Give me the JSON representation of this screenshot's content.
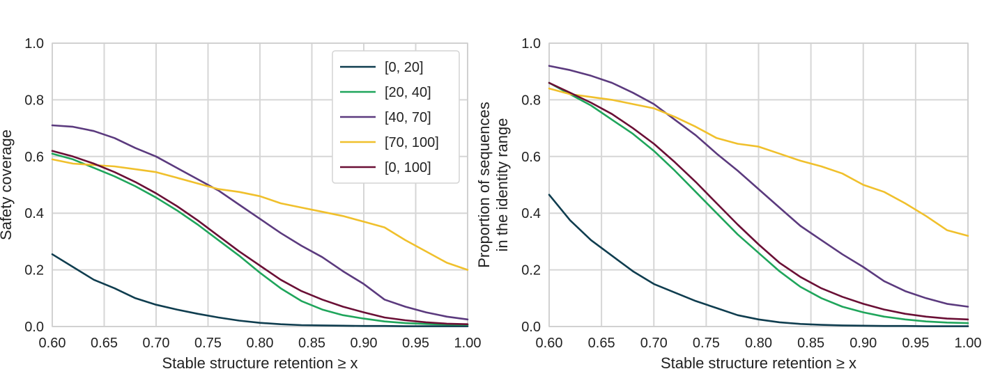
{
  "chart_data": [
    {
      "type": "line",
      "title": "",
      "xlabel": "Stable structure retention ≥ x",
      "ylabel": "Safety coverage",
      "ylabel_lines": [
        "Safety coverage"
      ],
      "xlim": [
        0.6,
        1.0
      ],
      "ylim": [
        0.0,
        1.0
      ],
      "xticks": [
        "0.60",
        "0.65",
        "0.70",
        "0.75",
        "0.80",
        "0.85",
        "0.90",
        "0.95",
        "1.00"
      ],
      "yticks": [
        "0.0",
        "0.2",
        "0.4",
        "0.6",
        "0.8",
        "1.0"
      ],
      "grid": true,
      "legend_position": "top-right",
      "series": [
        {
          "name": "[0, 20]",
          "color": "#0f3d4f",
          "x": [
            0.6,
            0.62,
            0.64,
            0.66,
            0.68,
            0.7,
            0.72,
            0.74,
            0.76,
            0.78,
            0.8,
            0.82,
            0.84,
            0.86,
            0.88,
            0.9,
            0.92,
            0.94,
            0.96,
            0.98,
            1.0
          ],
          "y": [
            0.255,
            0.21,
            0.165,
            0.135,
            0.1,
            0.077,
            0.06,
            0.045,
            0.032,
            0.021,
            0.013,
            0.008,
            0.005,
            0.004,
            0.003,
            0.002,
            0.002,
            0.001,
            0.001,
            0.001,
            0.001
          ]
        },
        {
          "name": "[20, 40]",
          "color": "#1fa55b",
          "x": [
            0.6,
            0.62,
            0.64,
            0.66,
            0.68,
            0.7,
            0.72,
            0.74,
            0.76,
            0.78,
            0.8,
            0.82,
            0.84,
            0.86,
            0.88,
            0.9,
            0.92,
            0.94,
            0.96,
            0.98,
            1.0
          ],
          "y": [
            0.61,
            0.59,
            0.56,
            0.53,
            0.495,
            0.455,
            0.41,
            0.36,
            0.305,
            0.25,
            0.19,
            0.135,
            0.09,
            0.06,
            0.04,
            0.028,
            0.018,
            0.012,
            0.009,
            0.007,
            0.006
          ]
        },
        {
          "name": "[40, 70]",
          "color": "#5b3a7e",
          "x": [
            0.6,
            0.62,
            0.64,
            0.66,
            0.68,
            0.7,
            0.72,
            0.74,
            0.76,
            0.78,
            0.8,
            0.82,
            0.84,
            0.86,
            0.88,
            0.9,
            0.92,
            0.94,
            0.96,
            0.98,
            1.0
          ],
          "y": [
            0.71,
            0.705,
            0.69,
            0.665,
            0.63,
            0.6,
            0.56,
            0.52,
            0.48,
            0.43,
            0.38,
            0.33,
            0.285,
            0.245,
            0.195,
            0.15,
            0.095,
            0.07,
            0.05,
            0.035,
            0.025
          ]
        },
        {
          "name": "[70, 100]",
          "color": "#f0c02c",
          "x": [
            0.6,
            0.62,
            0.64,
            0.66,
            0.68,
            0.7,
            0.72,
            0.74,
            0.76,
            0.78,
            0.8,
            0.82,
            0.84,
            0.86,
            0.88,
            0.9,
            0.92,
            0.94,
            0.96,
            0.98,
            1.0
          ],
          "y": [
            0.59,
            0.575,
            0.57,
            0.565,
            0.555,
            0.545,
            0.525,
            0.505,
            0.485,
            0.475,
            0.46,
            0.435,
            0.42,
            0.405,
            0.39,
            0.37,
            0.35,
            0.305,
            0.265,
            0.225,
            0.2
          ]
        },
        {
          "name": "[0, 100]",
          "color": "#6a0f35",
          "x": [
            0.6,
            0.62,
            0.64,
            0.66,
            0.68,
            0.7,
            0.72,
            0.74,
            0.76,
            0.78,
            0.8,
            0.82,
            0.84,
            0.86,
            0.88,
            0.9,
            0.92,
            0.94,
            0.96,
            0.98,
            1.0
          ],
          "y": [
            0.62,
            0.6,
            0.575,
            0.545,
            0.51,
            0.47,
            0.425,
            0.375,
            0.32,
            0.265,
            0.215,
            0.165,
            0.125,
            0.095,
            0.07,
            0.05,
            0.032,
            0.022,
            0.015,
            0.01,
            0.008
          ]
        }
      ]
    },
    {
      "type": "line",
      "title": "",
      "xlabel": "Stable structure retention ≥ x",
      "ylabel": "Proportion of sequences in the identity range",
      "ylabel_lines": [
        "Proportion of sequences",
        "in the identity range"
      ],
      "xlim": [
        0.6,
        1.0
      ],
      "ylim": [
        0.0,
        1.0
      ],
      "xticks": [
        "0.60",
        "0.65",
        "0.70",
        "0.75",
        "0.80",
        "0.85",
        "0.90",
        "0.95",
        "1.00"
      ],
      "yticks": [
        "0.0",
        "0.2",
        "0.4",
        "0.6",
        "0.8",
        "1.0"
      ],
      "grid": true,
      "legend_position": "none",
      "series": [
        {
          "name": "[0, 20]",
          "color": "#0f3d4f",
          "x": [
            0.6,
            0.62,
            0.64,
            0.66,
            0.68,
            0.7,
            0.72,
            0.74,
            0.76,
            0.78,
            0.8,
            0.82,
            0.84,
            0.86,
            0.88,
            0.9,
            0.92,
            0.94,
            0.96,
            0.98,
            1.0
          ],
          "y": [
            0.465,
            0.375,
            0.305,
            0.25,
            0.195,
            0.15,
            0.12,
            0.09,
            0.065,
            0.04,
            0.025,
            0.015,
            0.009,
            0.006,
            0.004,
            0.003,
            0.002,
            0.002,
            0.001,
            0.001,
            0.001
          ]
        },
        {
          "name": "[20, 40]",
          "color": "#1fa55b",
          "x": [
            0.6,
            0.62,
            0.64,
            0.66,
            0.68,
            0.7,
            0.72,
            0.74,
            0.76,
            0.78,
            0.8,
            0.82,
            0.84,
            0.86,
            0.88,
            0.9,
            0.92,
            0.94,
            0.96,
            0.98,
            1.0
          ],
          "y": [
            0.86,
            0.82,
            0.78,
            0.73,
            0.68,
            0.62,
            0.55,
            0.475,
            0.4,
            0.325,
            0.26,
            0.195,
            0.14,
            0.1,
            0.07,
            0.05,
            0.035,
            0.025,
            0.018,
            0.014,
            0.012
          ]
        },
        {
          "name": "[40, 70]",
          "color": "#5b3a7e",
          "x": [
            0.6,
            0.62,
            0.64,
            0.66,
            0.68,
            0.7,
            0.72,
            0.74,
            0.76,
            0.78,
            0.8,
            0.82,
            0.84,
            0.86,
            0.88,
            0.9,
            0.92,
            0.94,
            0.96,
            0.98,
            1.0
          ],
          "y": [
            0.92,
            0.905,
            0.885,
            0.86,
            0.825,
            0.785,
            0.73,
            0.675,
            0.61,
            0.55,
            0.485,
            0.42,
            0.355,
            0.305,
            0.255,
            0.21,
            0.16,
            0.125,
            0.1,
            0.08,
            0.07
          ]
        },
        {
          "name": "[70, 100]",
          "color": "#f0c02c",
          "x": [
            0.6,
            0.62,
            0.64,
            0.66,
            0.68,
            0.7,
            0.72,
            0.74,
            0.76,
            0.78,
            0.8,
            0.82,
            0.84,
            0.86,
            0.88,
            0.9,
            0.92,
            0.94,
            0.96,
            0.98,
            1.0
          ],
          "y": [
            0.84,
            0.82,
            0.81,
            0.8,
            0.785,
            0.77,
            0.74,
            0.705,
            0.665,
            0.645,
            0.635,
            0.61,
            0.585,
            0.565,
            0.54,
            0.5,
            0.475,
            0.435,
            0.39,
            0.34,
            0.32
          ]
        },
        {
          "name": "[0, 100]",
          "color": "#6a0f35",
          "x": [
            0.6,
            0.62,
            0.64,
            0.66,
            0.68,
            0.7,
            0.72,
            0.74,
            0.76,
            0.78,
            0.8,
            0.82,
            0.84,
            0.86,
            0.88,
            0.9,
            0.92,
            0.94,
            0.96,
            0.98,
            1.0
          ],
          "y": [
            0.86,
            0.825,
            0.79,
            0.75,
            0.7,
            0.645,
            0.58,
            0.51,
            0.435,
            0.36,
            0.29,
            0.225,
            0.175,
            0.135,
            0.105,
            0.08,
            0.06,
            0.045,
            0.035,
            0.028,
            0.025
          ]
        }
      ]
    }
  ]
}
